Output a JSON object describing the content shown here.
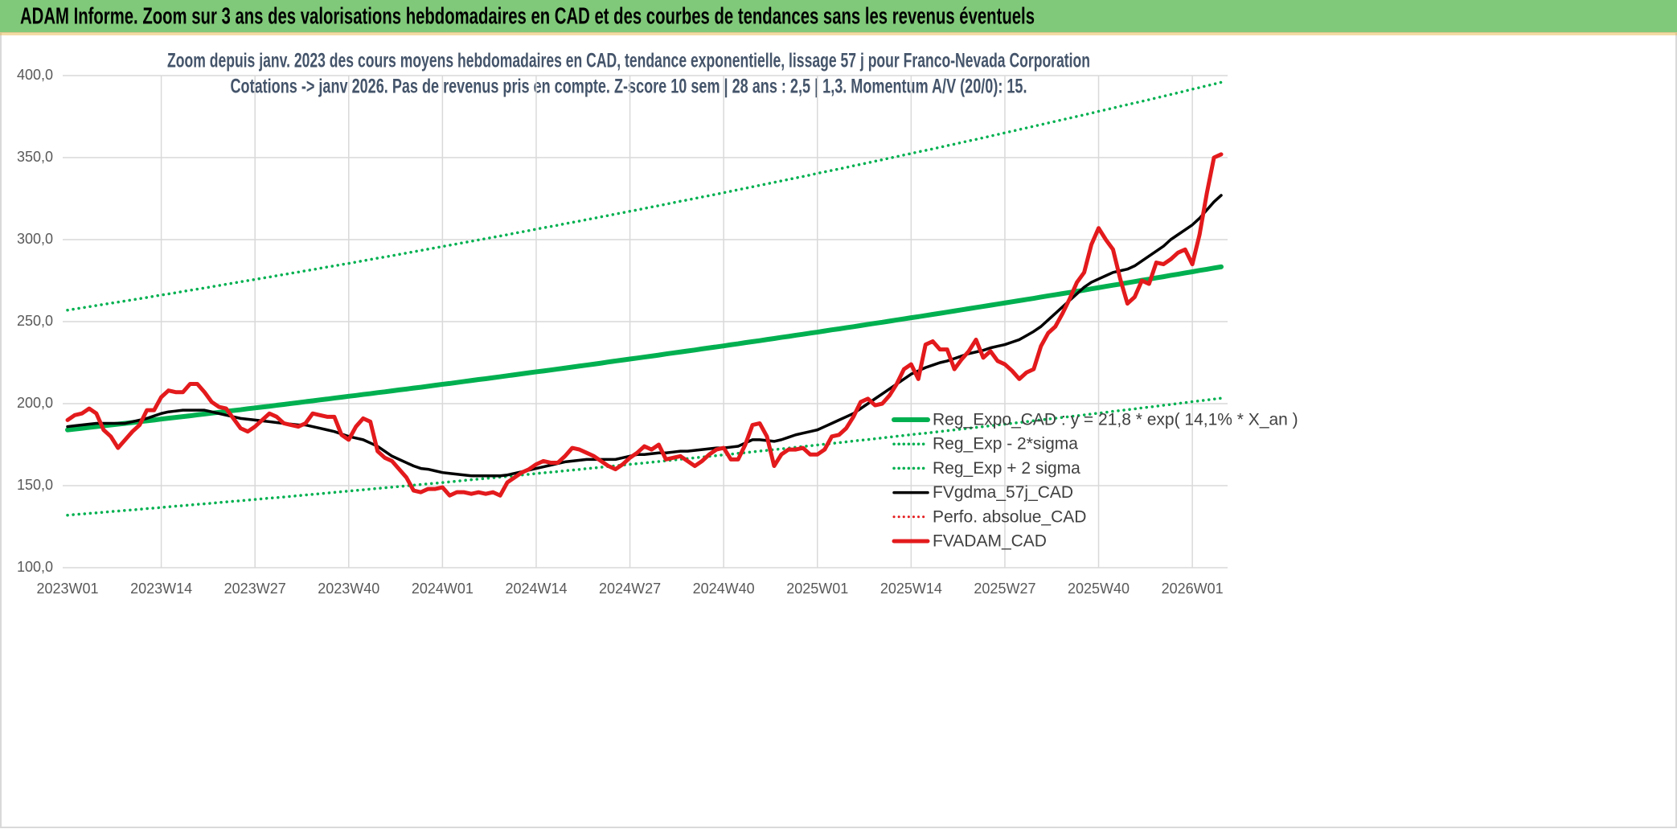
{
  "header": {
    "title": "ADAM Informe. Zoom sur 3 ans des valorisations hebdomadaires en CAD et des courbes de tendances sans les revenus éventuels"
  },
  "chart_data": {
    "type": "line",
    "title": "Zoom depuis janv. 2023 des cours moyens hebdomadaires en CAD, tendance exponentielle, lissage 57 j pour Franco-Nevada Corporation",
    "subtitle": "Cotations -> janv 2026. Pas de revenus pris en compte. Z-score 10 sem | 28 ans : 2,5 | 1,3. Momentum A/V (20/0): 15.",
    "categories": [
      "2023W01",
      null,
      null,
      null,
      null,
      null,
      null,
      null,
      null,
      null,
      null,
      null,
      null,
      "2023W14",
      null,
      null,
      null,
      null,
      null,
      null,
      null,
      null,
      null,
      null,
      null,
      null,
      "2023W27",
      null,
      null,
      null,
      null,
      null,
      null,
      null,
      null,
      null,
      null,
      null,
      null,
      "2023W40",
      null,
      null,
      null,
      null,
      null,
      null,
      null,
      null,
      null,
      null,
      null,
      null,
      "2024W01",
      null,
      null,
      null,
      null,
      null,
      null,
      null,
      null,
      null,
      null,
      null,
      null,
      "2024W14",
      null,
      null,
      null,
      null,
      null,
      null,
      null,
      null,
      null,
      null,
      null,
      null,
      "2024W27",
      null,
      null,
      null,
      null,
      null,
      null,
      null,
      null,
      null,
      null,
      null,
      null,
      "2024W40",
      null,
      null,
      null,
      null,
      null,
      null,
      null,
      null,
      null,
      null,
      null,
      null,
      "2025W01",
      null,
      null,
      null,
      null,
      null,
      null,
      null,
      null,
      null,
      null,
      null,
      null,
      "2025W14",
      null,
      null,
      null,
      null,
      null,
      null,
      null,
      null,
      null,
      null,
      null,
      null,
      "2025W27",
      null,
      null,
      null,
      null,
      null,
      null,
      null,
      null,
      null,
      null,
      null,
      null,
      "2025W40",
      null,
      null,
      null,
      null,
      null,
      null,
      null,
      null,
      null,
      null,
      null,
      null,
      "2026W01",
      null,
      null,
      null,
      null
    ],
    "series": [
      {
        "name": "Reg_Expo_CAD : y = 21,8 * exp( 14,1% * X_an )",
        "color": "#00b050",
        "style": "solid",
        "values": [
          184.0,
          184.5,
          185.0,
          185.5,
          186.0,
          186.5,
          187.0,
          187.5,
          188.0,
          188.5,
          189.0,
          189.5,
          190.0,
          190.6,
          191.1,
          191.6,
          192.1,
          192.6,
          193.2,
          193.7,
          194.2,
          194.7,
          195.3,
          195.8,
          196.3,
          196.9,
          197.4,
          197.9,
          198.4,
          199.0,
          199.5,
          200.1,
          200.6,
          201.2,
          201.7,
          202.3,
          202.8,
          203.4,
          203.9,
          204.5,
          205.0,
          205.6,
          206.1,
          206.7,
          207.2,
          207.8,
          208.4,
          208.9,
          209.5,
          210.0,
          210.6,
          211.2,
          211.8,
          212.3,
          212.9,
          213.5,
          214.1,
          214.7,
          215.2,
          215.8,
          216.4,
          217.0,
          217.6,
          218.2,
          218.8,
          219.4,
          219.9,
          220.5,
          221.1,
          221.7,
          222.3,
          222.9,
          223.5,
          224.1,
          224.7,
          225.4,
          226.0,
          226.6,
          227.2,
          227.8,
          228.4,
          229.0,
          229.6,
          230.3,
          230.9,
          231.5,
          232.1,
          232.7,
          233.4,
          234.0,
          234.6,
          235.2,
          235.9,
          236.5,
          237.2,
          237.8,
          238.4,
          239.1,
          239.7,
          240.4,
          241.0,
          241.7,
          242.3,
          243.0,
          243.6,
          244.3,
          245.0,
          245.6,
          246.3,
          246.9,
          247.6,
          248.3,
          249.0,
          249.6,
          250.3,
          251.0,
          251.7,
          252.4,
          253.0,
          253.7,
          254.4,
          255.1,
          255.8,
          256.5,
          257.2,
          257.9,
          258.6,
          259.3,
          260.0,
          260.7,
          261.4,
          262.1,
          262.8,
          263.5,
          264.2,
          265.0,
          265.7,
          266.4,
          267.1,
          267.8,
          268.5,
          269.2,
          270.0,
          270.7,
          271.5,
          272.2,
          272.9,
          273.7,
          274.4,
          275.2,
          275.9,
          276.7,
          277.4,
          278.2,
          278.9,
          279.7,
          280.4,
          281.2,
          281.9,
          282.7,
          283.4
        ]
      },
      {
        "name": "Reg_Exp - 2*sigma",
        "color": "#00b050",
        "style": "dotted",
        "values": [
          132.0,
          132.4,
          132.7,
          133.1,
          133.4,
          133.8,
          134.2,
          134.5,
          134.9,
          135.2,
          135.6,
          136.0,
          136.3,
          136.7,
          137.1,
          137.5,
          137.8,
          138.2,
          138.6,
          138.9,
          139.3,
          139.7,
          140.1,
          140.5,
          140.8,
          141.2,
          141.6,
          142.0,
          142.4,
          142.7,
          143.1,
          143.5,
          143.9,
          144.3,
          144.7,
          145.1,
          145.5,
          145.9,
          146.3,
          146.7,
          147.1,
          147.5,
          147.9,
          148.3,
          148.7,
          149.1,
          149.5,
          149.9,
          150.3,
          150.7,
          151.1,
          151.5,
          151.9,
          152.3,
          152.7,
          153.2,
          153.6,
          154.0,
          154.4,
          154.8,
          155.2,
          155.6,
          156.1,
          156.5,
          156.9,
          157.4,
          157.8,
          158.2,
          158.6,
          159.1,
          159.5,
          159.9,
          160.4,
          160.8,
          161.2,
          161.7,
          162.1,
          162.6,
          163.0,
          163.4,
          163.8,
          164.3,
          164.7,
          165.2,
          165.6,
          166.1,
          166.5,
          167.0,
          167.4,
          167.9,
          168.3,
          168.8,
          169.2,
          169.7,
          170.1,
          170.6,
          171.1,
          171.5,
          172.0,
          172.4,
          172.9,
          173.4,
          173.9,
          174.3,
          174.8,
          175.3,
          175.7,
          176.2,
          176.7,
          177.2,
          177.7,
          178.1,
          178.6,
          179.1,
          179.6,
          180.1,
          180.6,
          181.1,
          181.6,
          182.0,
          182.5,
          183.0,
          183.5,
          184.0,
          184.5,
          185.0,
          185.5,
          186.0,
          186.5,
          187.0,
          187.5,
          188.0,
          188.5,
          189.0,
          189.6,
          190.1,
          190.6,
          191.1,
          191.6,
          192.1,
          192.6,
          193.1,
          193.7,
          194.2,
          194.7,
          195.3,
          195.8,
          196.3,
          196.8,
          197.4,
          197.9,
          198.4,
          199.0,
          199.5,
          200.1,
          200.6,
          201.2,
          201.7,
          202.2,
          202.8,
          203.3
        ]
      },
      {
        "name": "Reg_Exp + 2 sigma",
        "color": "#00b050",
        "style": "dotted",
        "values": [
          257.0,
          257.7,
          258.4,
          259.1,
          259.8,
          260.5,
          261.2,
          261.9,
          262.6,
          263.3,
          264.0,
          264.7,
          265.5,
          266.2,
          266.9,
          267.6,
          268.4,
          269.1,
          269.8,
          270.5,
          271.3,
          272.0,
          272.8,
          273.5,
          274.3,
          275.0,
          275.7,
          276.5,
          277.2,
          278.0,
          278.7,
          279.5,
          280.2,
          281.0,
          281.7,
          282.5,
          283.3,
          284.0,
          284.8,
          285.5,
          286.3,
          287.1,
          287.9,
          288.7,
          289.4,
          290.2,
          291.0,
          291.8,
          292.6,
          293.4,
          294.2,
          295.0,
          295.8,
          296.6,
          297.4,
          298.2,
          299.0,
          299.8,
          300.6,
          301.4,
          302.2,
          303.0,
          303.9,
          304.7,
          305.5,
          306.4,
          307.2,
          308.0,
          308.8,
          309.7,
          310.5,
          311.3,
          312.2,
          313.0,
          313.9,
          314.7,
          315.6,
          316.4,
          317.3,
          318.1,
          319.0,
          319.9,
          320.7,
          321.6,
          322.5,
          323.4,
          324.2,
          325.1,
          326.0,
          326.8,
          327.7,
          328.6,
          329.5,
          330.4,
          331.3,
          332.2,
          333.1,
          334.0,
          334.9,
          335.8,
          336.7,
          337.6,
          338.5,
          339.4,
          340.4,
          341.3,
          342.2,
          343.1,
          344.0,
          345.0,
          345.9,
          346.8,
          347.8,
          348.7,
          349.7,
          350.6,
          351.6,
          352.5,
          353.5,
          354.4,
          355.3,
          356.3,
          357.3,
          358.2,
          359.2,
          360.2,
          361.1,
          362.1,
          363.1,
          364.1,
          365.1,
          366.1,
          367.1,
          368.1,
          369.1,
          370.1,
          371.1,
          372.1,
          373.1,
          374.1,
          375.1,
          376.1,
          377.1,
          378.2,
          379.2,
          380.2,
          381.3,
          382.3,
          383.3,
          384.3,
          385.3,
          386.4,
          387.4,
          388.5,
          389.5,
          390.6,
          391.7,
          392.7,
          393.8,
          394.8,
          395.9
        ]
      },
      {
        "name": "FVgdma_57j_CAD",
        "color": "#000000",
        "style": "solid",
        "values": [
          186,
          186.5,
          187,
          187.5,
          188,
          188,
          188,
          188,
          188,
          189,
          190,
          191,
          192.5,
          194,
          195,
          195.5,
          196,
          196,
          196,
          196,
          195,
          194,
          193,
          192,
          191,
          190.5,
          190,
          189.5,
          189,
          188.5,
          188,
          187.5,
          187,
          187,
          186,
          185,
          184,
          183,
          181.5,
          180,
          179,
          178,
          176,
          174,
          171,
          168,
          166,
          164,
          162,
          160.5,
          160,
          159,
          158,
          157.5,
          157,
          156.5,
          156,
          156,
          156,
          156,
          156,
          156.5,
          157.5,
          158.5,
          159.5,
          160.5,
          161.5,
          162.5,
          163.5,
          164.5,
          165,
          165.5,
          166,
          166,
          166,
          166,
          166,
          167,
          168,
          169,
          169,
          169.5,
          170,
          170,
          170.5,
          171,
          171,
          171.5,
          172,
          172.5,
          173,
          173,
          173.5,
          174,
          176,
          178,
          178,
          177.5,
          177,
          178,
          179.5,
          181,
          182,
          183,
          184,
          186,
          188,
          190,
          192,
          194,
          197,
          200,
          203,
          206,
          209,
          212,
          215,
          218,
          220,
          222,
          223.5,
          225,
          226,
          227.5,
          229,
          230.5,
          231.5,
          232.5,
          234,
          235,
          236,
          237.5,
          239,
          241.5,
          244,
          247,
          251,
          255,
          259,
          263,
          267,
          271,
          274,
          276,
          278,
          280,
          281,
          282,
          284,
          287,
          290,
          293,
          296,
          300,
          303,
          306,
          309,
          313,
          318,
          323,
          327
        ]
      },
      {
        "name": "Perfo. absolue_CAD",
        "color": "#e31a1c",
        "style": "dotted"
      },
      {
        "name": "FVADAM_CAD",
        "color": "#e31a1c",
        "style": "solid",
        "values": [
          190,
          193,
          194,
          197,
          194,
          184,
          180,
          173,
          178,
          183,
          187,
          196,
          196,
          204,
          208,
          207,
          207,
          212,
          212,
          207,
          201,
          198,
          197,
          191,
          185,
          183,
          186,
          190,
          194,
          192,
          188,
          187,
          186,
          188,
          194,
          193,
          192,
          192,
          181,
          178,
          186,
          191,
          189,
          171,
          167,
          165,
          160,
          155,
          147,
          146,
          148,
          148,
          149,
          144,
          146,
          146,
          145,
          146,
          145,
          146,
          144,
          152,
          155,
          158,
          160,
          163,
          165,
          164,
          164,
          168,
          173,
          172,
          170,
          168,
          165,
          162,
          160,
          163,
          167,
          170,
          174,
          172,
          175,
          166,
          167,
          168,
          165,
          162,
          165,
          169,
          172,
          173,
          166,
          166,
          175,
          187,
          188,
          180,
          162,
          169,
          172,
          172,
          173,
          169,
          169,
          172,
          180,
          181,
          185,
          192,
          201,
          203,
          199,
          200,
          205,
          212,
          221,
          224,
          215,
          236,
          238,
          233,
          233,
          221,
          227,
          232,
          239,
          228,
          232,
          226,
          224,
          220,
          215,
          219,
          221,
          235,
          243,
          247,
          255,
          264,
          274,
          280,
          297,
          307,
          300,
          294,
          276,
          261,
          265,
          275,
          273,
          286,
          285,
          288,
          292,
          294,
          285,
          303,
          328,
          350,
          352
        ]
      }
    ],
    "ylim": [
      100,
      400
    ],
    "yticks": [
      {
        "value": 100,
        "label": "100,0"
      },
      {
        "value": 150,
        "label": "150,0"
      },
      {
        "value": 200,
        "label": "200,0"
      },
      {
        "value": 250,
        "label": "250,0"
      },
      {
        "value": 300,
        "label": "300,0"
      },
      {
        "value": 350,
        "label": "350,0"
      },
      {
        "value": 400,
        "label": "400,0"
      }
    ],
    "grid": true,
    "legend": "right"
  }
}
